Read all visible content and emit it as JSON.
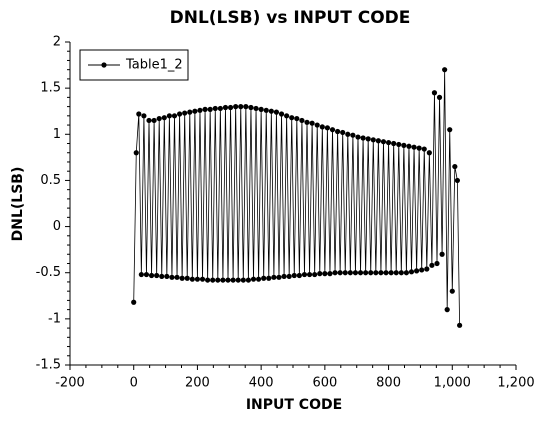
{
  "chart_data": {
    "type": "line",
    "title": "DNL(LSB) vs INPUT CODE",
    "xlabel": "INPUT CODE",
    "ylabel": "DNL(LSB)",
    "x": [
      0,
      8,
      16,
      24,
      32,
      40,
      48,
      56,
      64,
      72,
      80,
      88,
      96,
      104,
      112,
      120,
      128,
      136,
      144,
      152,
      160,
      168,
      176,
      184,
      192,
      200,
      208,
      216,
      224,
      232,
      240,
      248,
      256,
      264,
      272,
      280,
      288,
      296,
      304,
      312,
      320,
      328,
      336,
      344,
      352,
      360,
      368,
      376,
      384,
      392,
      400,
      408,
      416,
      424,
      432,
      440,
      448,
      456,
      464,
      472,
      480,
      488,
      496,
      504,
      512,
      520,
      528,
      536,
      544,
      552,
      560,
      568,
      576,
      584,
      592,
      600,
      608,
      616,
      624,
      632,
      640,
      648,
      656,
      664,
      672,
      680,
      688,
      696,
      704,
      712,
      720,
      728,
      736,
      744,
      752,
      760,
      768,
      776,
      784,
      792,
      800,
      808,
      816,
      824,
      832,
      840,
      848,
      856,
      864,
      872,
      880,
      888,
      896,
      904,
      912,
      920,
      928,
      936,
      944,
      952,
      960,
      968,
      976,
      984,
      992,
      1000,
      1008,
      1016,
      1023
    ],
    "series": [
      {
        "name": "Table1_2",
        "color": "#000000",
        "values": [
          -0.82,
          0.8,
          1.22,
          -0.52,
          1.2,
          -0.52,
          1.15,
          -0.53,
          1.15,
          -0.53,
          1.17,
          -0.54,
          1.18,
          -0.54,
          1.2,
          -0.55,
          1.2,
          -0.55,
          1.22,
          -0.56,
          1.23,
          -0.56,
          1.24,
          -0.57,
          1.25,
          -0.57,
          1.26,
          -0.57,
          1.27,
          -0.58,
          1.27,
          -0.58,
          1.28,
          -0.58,
          1.28,
          -0.58,
          1.29,
          -0.58,
          1.29,
          -0.58,
          1.3,
          -0.58,
          1.3,
          -0.58,
          1.3,
          -0.58,
          1.29,
          -0.57,
          1.28,
          -0.57,
          1.27,
          -0.56,
          1.26,
          -0.56,
          1.25,
          -0.55,
          1.24,
          -0.55,
          1.22,
          -0.54,
          1.2,
          -0.54,
          1.18,
          -0.53,
          1.17,
          -0.53,
          1.15,
          -0.52,
          1.13,
          -0.52,
          1.12,
          -0.52,
          1.1,
          -0.51,
          1.08,
          -0.51,
          1.07,
          -0.51,
          1.05,
          -0.5,
          1.03,
          -0.5,
          1.02,
          -0.5,
          1.0,
          -0.5,
          0.99,
          -0.5,
          0.97,
          -0.5,
          0.96,
          -0.5,
          0.95,
          -0.5,
          0.94,
          -0.5,
          0.93,
          -0.5,
          0.92,
          -0.5,
          0.91,
          -0.5,
          0.9,
          -0.5,
          0.89,
          -0.5,
          0.88,
          -0.5,
          0.87,
          -0.49,
          0.86,
          -0.48,
          0.85,
          -0.47,
          0.84,
          -0.46,
          0.8,
          -0.42,
          1.45,
          -0.4,
          1.4,
          -0.3,
          1.7,
          -0.9,
          1.05,
          -0.7,
          0.65,
          0.5,
          -1.07
        ]
      }
    ],
    "xlim": [
      -200,
      1200
    ],
    "xticks": [
      -200,
      0,
      200,
      400,
      600,
      800,
      {
        "value": 1000,
        "label": "1,000"
      },
      {
        "value": 1200,
        "label": "1,200"
      }
    ],
    "ylim": [
      -1.5,
      2
    ],
    "yticks": [
      -1.5,
      -1,
      -0.5,
      0,
      0.5,
      1,
      1.5,
      2
    ],
    "grid": false,
    "legend": "top-left"
  }
}
